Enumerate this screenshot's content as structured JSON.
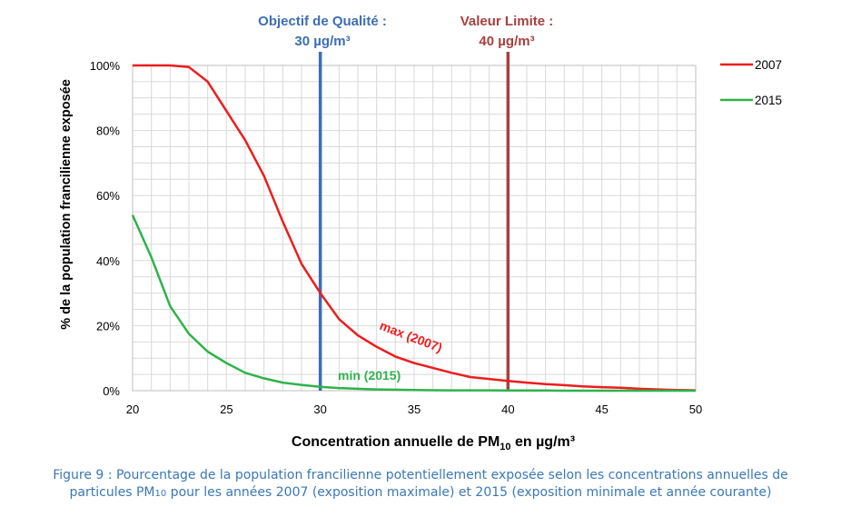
{
  "chart_data": {
    "type": "line",
    "title": "",
    "xlabel": "Concentration annuelle de PM10 en µg/m³",
    "xlabel_parts": {
      "before": "Concentration annuelle de PM",
      "sub": "10",
      "after": " en µg/m³"
    },
    "ylabel": "% de la population francilienne exposée",
    "xlim": [
      20,
      50
    ],
    "ylim": [
      0,
      100
    ],
    "x_ticks": [
      20,
      25,
      30,
      35,
      40,
      45,
      50
    ],
    "x_tick_labels": [
      "20",
      "25",
      "30",
      "35",
      "40",
      "45",
      "50"
    ],
    "y_ticks": [
      0,
      20,
      40,
      60,
      80,
      100
    ],
    "y_tick_labels": [
      "0%",
      "20%",
      "40%",
      "60%",
      "80%",
      "100%"
    ],
    "grid": true,
    "legend_position": "top-right",
    "series": [
      {
        "name": "2007",
        "color": "#ee1c1c",
        "x": [
          20,
          21,
          22,
          23,
          24,
          25,
          26,
          27,
          28,
          29,
          30,
          31,
          32,
          33,
          34,
          35,
          36,
          37,
          38,
          39,
          40,
          41,
          42,
          43,
          44,
          45,
          46,
          47,
          48,
          49,
          50
        ],
        "values": [
          100,
          100,
          100,
          99.5,
          95,
          86,
          77,
          66,
          52,
          39,
          30,
          22,
          17,
          13.5,
          10.5,
          8.5,
          7,
          5.5,
          4.2,
          3.6,
          3,
          2.5,
          2,
          1.7,
          1.3,
          1.1,
          0.9,
          0.6,
          0.4,
          0.2,
          0.1
        ]
      },
      {
        "name": "2015",
        "color": "#2eb34a",
        "x": [
          20,
          21,
          22,
          23,
          24,
          25,
          26,
          27,
          28,
          29,
          30,
          31,
          32,
          33,
          34,
          35,
          36,
          37,
          38,
          39,
          40,
          41,
          42,
          43,
          44,
          45,
          46,
          47,
          48,
          49,
          50
        ],
        "values": [
          54,
          41,
          26,
          17.5,
          12,
          8.5,
          5.5,
          3.8,
          2.5,
          1.8,
          1.2,
          0.8,
          0.6,
          0.4,
          0.3,
          0.2,
          0.15,
          0.1,
          0.1,
          0.1,
          0.05,
          0.05,
          0.05,
          0,
          0,
          0,
          0,
          0,
          0,
          0,
          0
        ]
      }
    ],
    "vertical_lines": [
      {
        "x": 30,
        "color": "#3d6db5",
        "label_line1": "Objectif de Qualité :",
        "label_line2": "30 µg/m³"
      },
      {
        "x": 40,
        "color": "#a8403f",
        "label_line1": "Valeur Limite :",
        "label_line2": "40 µg/m³"
      }
    ],
    "annotations": [
      {
        "text": "max (2007)",
        "color": "#ee1c1c"
      },
      {
        "text": "min (2015)",
        "color": "#2eb34a"
      }
    ]
  },
  "caption": {
    "line1": "Figure 9 : Pourcentage de la population francilienne potentiellement exposée selon les concentrations annuelles de",
    "line2_before": "particules PM",
    "line2_sub": "10",
    "line2_after": " pour les années 2007 (exposition maximale) et 2015 (exposition minimale et année courante)"
  }
}
